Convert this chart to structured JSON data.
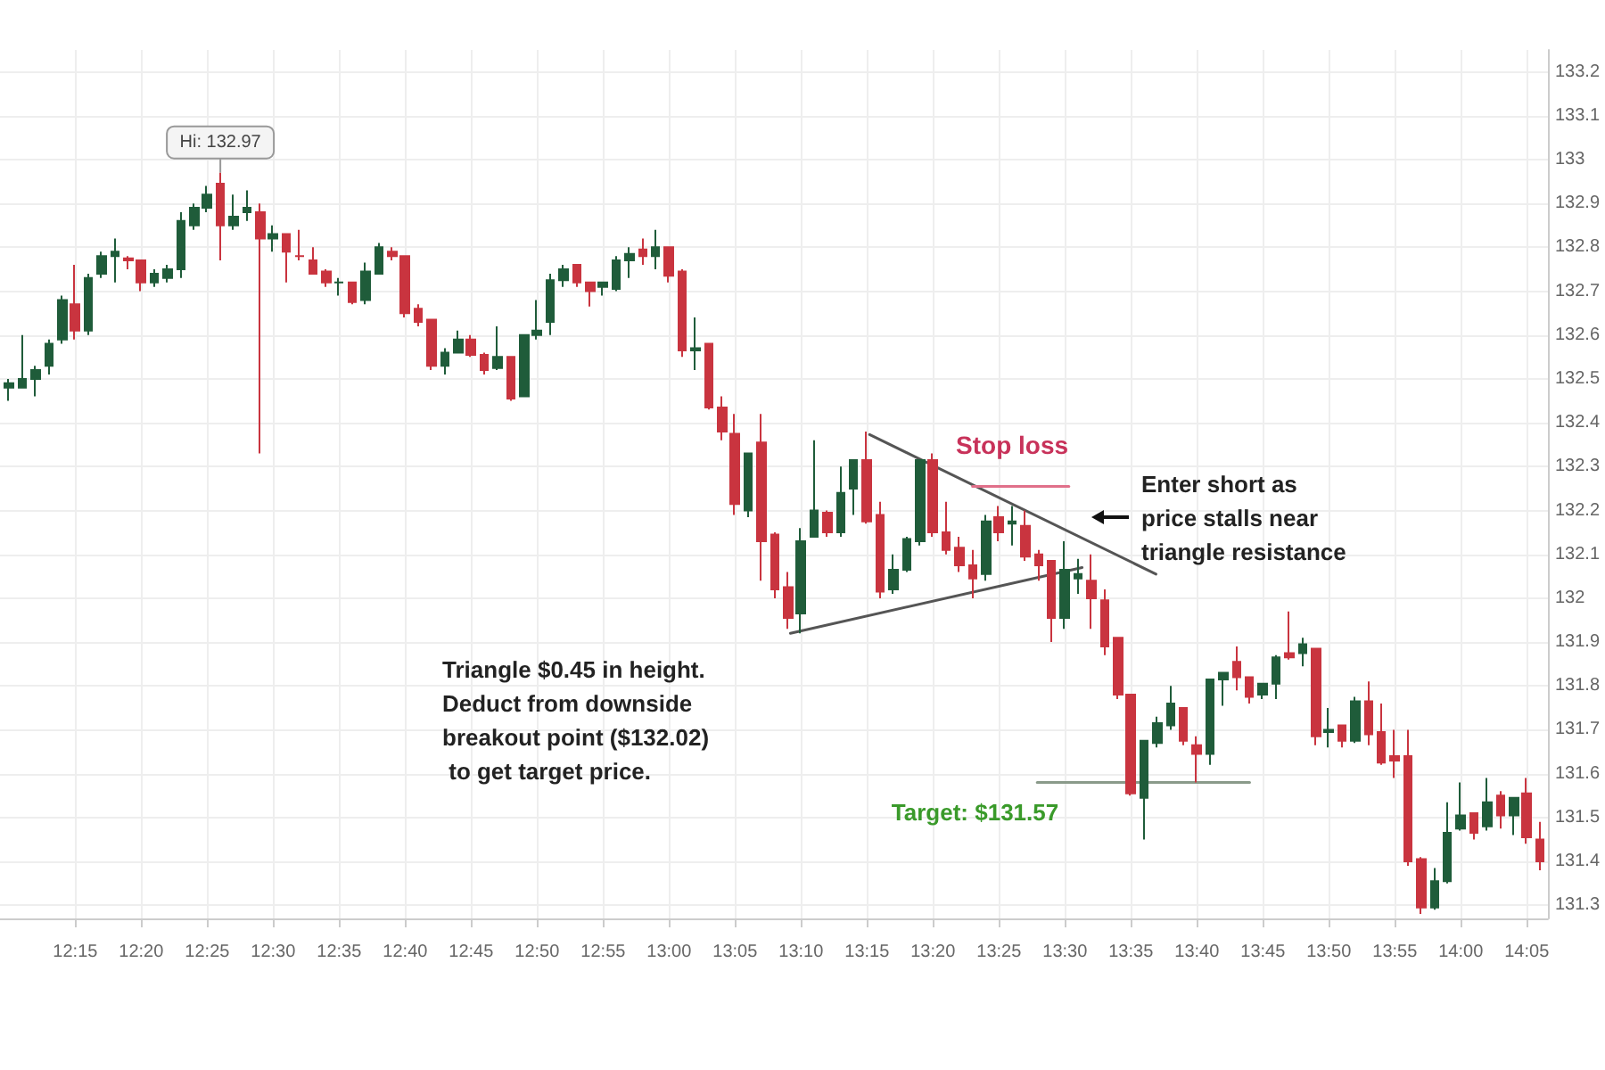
{
  "chart_data": {
    "type": "candlestick",
    "x": [
      12.1667,
      12.1833,
      12.2,
      12.2167,
      12.2333,
      12.25,
      12.2667,
      12.2833,
      12.3,
      12.3167,
      12.3333,
      12.35,
      12.3667,
      12.3833,
      12.4,
      12.4167,
      12.4333,
      12.45,
      12.4667,
      12.4833,
      12.5,
      12.5167,
      12.5333,
      12.55,
      12.5667,
      12.5833,
      12.6,
      12.6167,
      12.6333,
      12.65,
      12.6667,
      12.6833,
      12.7,
      12.7167,
      12.7333,
      12.75,
      12.7667,
      12.7833,
      12.8,
      12.8167,
      12.8333,
      12.85,
      12.8667,
      12.8833,
      12.9,
      12.9167,
      12.9333,
      12.95,
      12.9667,
      12.9833,
      13,
      13.0167,
      13.0333,
      13.05,
      13.0667,
      13.0833,
      13.1,
      13.1167,
      13.1333,
      13.15,
      13.1667,
      13.1833,
      13.2,
      13.2167,
      13.2333,
      13.25,
      13.2667,
      13.2833,
      13.3,
      13.3167,
      13.3333,
      13.35,
      13.3667,
      13.3833,
      13.4,
      13.4167,
      13.4333,
      13.45,
      13.4667,
      13.4833,
      13.5,
      13.5167,
      13.5333,
      13.55,
      13.5667,
      13.5833,
      13.6,
      13.6167,
      13.6333,
      13.65,
      13.6667,
      13.6833,
      13.7,
      13.7167,
      13.7333,
      13.75,
      13.7667,
      13.7833,
      13.8,
      13.8167,
      13.8333,
      13.85,
      13.8667,
      13.8833,
      13.9,
      13.9167,
      13.9333,
      13.95,
      13.9667,
      13.9833,
      14,
      14.0167,
      14.0333,
      14.05,
      14.0667,
      14.0833,
      14.1
    ],
    "ohlc": [
      [
        132.48,
        132.5,
        132.45,
        132.49
      ],
      [
        132.48,
        132.6,
        132.48,
        132.5
      ],
      [
        132.5,
        132.53,
        132.46,
        132.52
      ],
      [
        132.53,
        132.59,
        132.51,
        132.58
      ],
      [
        132.59,
        132.69,
        132.58,
        132.68
      ],
      [
        132.67,
        132.76,
        132.59,
        132.61
      ],
      [
        132.61,
        132.74,
        132.6,
        132.73
      ],
      [
        132.74,
        132.79,
        132.73,
        132.78
      ],
      [
        132.78,
        132.82,
        132.72,
        132.79
      ],
      [
        132.775,
        132.78,
        132.75,
        132.77
      ],
      [
        132.77,
        132.77,
        132.7,
        132.72
      ],
      [
        132.72,
        132.75,
        132.71,
        132.74
      ],
      [
        132.73,
        132.76,
        132.72,
        132.75
      ],
      [
        132.75,
        132.88,
        132.73,
        132.86
      ],
      [
        132.85,
        132.9,
        132.84,
        132.89
      ],
      [
        132.89,
        132.94,
        132.88,
        132.92
      ],
      [
        132.945,
        132.97,
        132.77,
        132.85
      ],
      [
        132.85,
        132.92,
        132.84,
        132.87
      ],
      [
        132.88,
        132.93,
        132.86,
        132.89
      ],
      [
        132.88,
        132.9,
        132.33,
        132.82
      ],
      [
        132.82,
        132.85,
        132.79,
        132.83
      ],
      [
        132.83,
        132.83,
        132.72,
        132.79
      ],
      [
        132.78,
        132.84,
        132.77,
        132.78
      ],
      [
        132.77,
        132.8,
        132.74,
        132.74
      ],
      [
        132.745,
        132.75,
        132.71,
        132.72
      ],
      [
        132.72,
        132.73,
        132.69,
        132.72
      ],
      [
        132.72,
        132.72,
        132.67,
        132.675
      ],
      [
        132.68,
        132.765,
        132.67,
        132.745
      ],
      [
        132.74,
        132.81,
        132.74,
        132.8
      ],
      [
        132.79,
        132.8,
        132.77,
        132.78
      ],
      [
        132.78,
        132.78,
        132.64,
        132.65
      ],
      [
        132.66,
        132.67,
        132.62,
        132.63
      ],
      [
        132.635,
        132.635,
        132.52,
        132.53
      ],
      [
        132.53,
        132.57,
        132.51,
        132.56
      ],
      [
        132.56,
        132.61,
        132.56,
        132.59
      ],
      [
        132.59,
        132.6,
        132.55,
        132.555
      ],
      [
        132.555,
        132.56,
        132.51,
        132.52
      ],
      [
        132.525,
        132.62,
        132.52,
        132.55
      ],
      [
        132.55,
        132.55,
        132.45,
        132.455
      ],
      [
        132.46,
        132.6,
        132.46,
        132.6
      ],
      [
        132.6,
        132.68,
        132.59,
        132.61
      ],
      [
        132.63,
        132.74,
        132.6,
        132.725
      ],
      [
        132.725,
        132.76,
        132.71,
        132.75
      ],
      [
        132.76,
        132.76,
        132.71,
        132.72
      ],
      [
        132.72,
        132.72,
        132.665,
        132.7
      ],
      [
        132.71,
        132.72,
        132.69,
        132.72
      ],
      [
        132.705,
        132.78,
        132.7,
        132.77
      ],
      [
        132.77,
        132.8,
        132.73,
        132.785
      ],
      [
        132.795,
        132.82,
        132.76,
        132.78
      ],
      [
        132.78,
        132.84,
        132.75,
        132.8
      ],
      [
        132.8,
        132.8,
        132.72,
        132.735
      ],
      [
        132.745,
        132.75,
        132.55,
        132.565
      ],
      [
        132.565,
        132.64,
        132.52,
        132.57
      ],
      [
        132.58,
        132.58,
        132.43,
        132.435
      ],
      [
        132.435,
        132.46,
        132.36,
        132.38
      ],
      [
        132.375,
        132.42,
        132.19,
        132.215
      ],
      [
        132.2,
        132.33,
        132.185,
        132.33
      ],
      [
        132.355,
        132.42,
        132.04,
        132.13
      ],
      [
        132.145,
        132.15,
        132.0,
        132.02
      ],
      [
        132.025,
        132.06,
        131.93,
        131.955
      ],
      [
        131.965,
        132.16,
        131.92,
        132.13
      ],
      [
        132.14,
        132.36,
        132.14,
        132.2
      ],
      [
        132.195,
        132.2,
        132.14,
        132.15
      ],
      [
        132.15,
        132.3,
        132.14,
        132.24
      ],
      [
        132.25,
        132.315,
        132.19,
        132.315
      ],
      [
        132.315,
        132.38,
        132.17,
        132.175
      ],
      [
        132.19,
        132.22,
        132.0,
        132.015
      ],
      [
        132.02,
        132.1,
        132.01,
        132.065
      ],
      [
        132.065,
        132.14,
        132.06,
        132.135
      ],
      [
        132.13,
        132.315,
        132.12,
        132.315
      ],
      [
        132.315,
        132.33,
        132.14,
        132.15
      ],
      [
        132.15,
        132.22,
        132.1,
        132.11
      ],
      [
        132.115,
        132.14,
        132.06,
        132.075
      ],
      [
        132.075,
        132.11,
        132.0,
        132.045
      ],
      [
        132.055,
        132.19,
        132.04,
        132.175
      ],
      [
        132.185,
        132.21,
        132.13,
        132.15
      ],
      [
        132.17,
        132.21,
        132.12,
        132.175
      ],
      [
        132.165,
        132.2,
        132.085,
        132.095
      ],
      [
        132.1,
        132.11,
        132.04,
        132.075
      ],
      [
        132.085,
        132.085,
        131.9,
        131.955
      ],
      [
        131.955,
        132.13,
        131.93,
        132.065
      ],
      [
        132.045,
        132.09,
        132.01,
        132.055
      ],
      [
        132.04,
        132.1,
        131.93,
        132.0
      ],
      [
        131.995,
        132.02,
        131.87,
        131.89
      ],
      [
        131.91,
        131.91,
        131.77,
        131.78
      ],
      [
        131.78,
        131.78,
        131.55,
        131.555
      ],
      [
        131.545,
        131.675,
        131.45,
        131.675
      ],
      [
        131.67,
        131.73,
        131.66,
        131.715
      ],
      [
        131.71,
        131.8,
        131.7,
        131.76
      ],
      [
        131.75,
        131.75,
        131.665,
        131.675
      ],
      [
        131.665,
        131.685,
        131.58,
        131.645
      ],
      [
        131.645,
        131.815,
        131.62,
        131.815
      ],
      [
        131.815,
        131.83,
        131.755,
        131.83
      ],
      [
        131.855,
        131.89,
        131.79,
        131.82
      ],
      [
        131.82,
        131.82,
        131.76,
        131.775
      ],
      [
        131.78,
        131.805,
        131.77,
        131.805
      ],
      [
        131.805,
        131.87,
        131.77,
        131.865
      ],
      [
        131.875,
        131.97,
        131.86,
        131.865
      ],
      [
        131.875,
        131.91,
        131.845,
        131.895
      ],
      [
        131.885,
        131.885,
        131.665,
        131.685
      ],
      [
        131.695,
        131.75,
        131.66,
        131.7
      ],
      [
        131.71,
        131.71,
        131.66,
        131.675
      ],
      [
        131.675,
        131.775,
        131.67,
        131.765
      ],
      [
        131.765,
        131.81,
        131.665,
        131.69
      ],
      [
        131.695,
        131.76,
        131.62,
        131.625
      ],
      [
        131.64,
        131.7,
        131.59,
        131.63
      ],
      [
        131.64,
        131.7,
        131.39,
        131.4
      ],
      [
        131.405,
        131.41,
        131.28,
        131.295
      ],
      [
        131.295,
        131.385,
        131.29,
        131.355
      ],
      [
        131.355,
        131.535,
        131.35,
        131.465
      ],
      [
        131.475,
        131.58,
        131.47,
        131.505
      ],
      [
        131.51,
        131.51,
        131.45,
        131.465
      ],
      [
        131.48,
        131.59,
        131.47,
        131.535
      ],
      [
        131.55,
        131.56,
        131.475,
        131.505
      ],
      [
        131.505,
        131.545,
        131.46,
        131.545
      ],
      [
        131.555,
        131.59,
        131.44,
        131.455
      ],
      [
        131.45,
        131.49,
        131.38,
        131.4
      ]
    ],
    "series": [
      {
        "type": "line",
        "x": [
          13.2533,
          13.615
        ],
        "values": [
          132.373,
          132.055
        ],
        "color": "#555555"
      },
      {
        "type": "line",
        "x": [
          13.1533,
          13.5217
        ],
        "values": [
          131.92,
          132.07
        ],
        "color": "#555555"
      },
      {
        "type": "line",
        "x": [
          13.3833,
          13.505
        ],
        "values": [
          132.255,
          132.255
        ],
        "color": "#e0708a"
      },
      {
        "type": "line",
        "x": [
          13.465,
          13.7333
        ],
        "values": [
          131.58,
          131.58
        ],
        "color": "#8a9a8a"
      }
    ],
    "xlim": [
      12.155,
      14.11
    ],
    "xticks": [
      {
        "value": 12.25,
        "label": "12:15"
      },
      {
        "value": 12.3333,
        "label": "12:20"
      },
      {
        "value": 12.4167,
        "label": "12:25"
      },
      {
        "value": 12.5,
        "label": "12:30"
      },
      {
        "value": 12.5833,
        "label": "12:35"
      },
      {
        "value": 12.6667,
        "label": "12:40"
      },
      {
        "value": 12.75,
        "label": "12:45"
      },
      {
        "value": 12.8333,
        "label": "12:50"
      },
      {
        "value": 12.9167,
        "label": "12:55"
      },
      {
        "value": 13,
        "label": "13:00"
      },
      {
        "value": 13.0833,
        "label": "13:05"
      },
      {
        "value": 13.1667,
        "label": "13:10"
      },
      {
        "value": 13.25,
        "label": "13:15"
      },
      {
        "value": 13.3333,
        "label": "13:20"
      },
      {
        "value": 13.4167,
        "label": "13:25"
      },
      {
        "value": 13.5,
        "label": "13:30"
      },
      {
        "value": 13.5833,
        "label": "13:35"
      },
      {
        "value": 13.6667,
        "label": "13:40"
      },
      {
        "value": 13.75,
        "label": "13:45"
      },
      {
        "value": 13.8333,
        "label": "13:50"
      },
      {
        "value": 13.9167,
        "label": "13:55"
      },
      {
        "value": 14,
        "label": "14:00"
      },
      {
        "value": 14.0833,
        "label": "14:05"
      }
    ],
    "ylim": [
      131.27,
      133.25
    ],
    "yticks": [
      131.3,
      131.4,
      131.5,
      131.6,
      131.7,
      131.8,
      131.9,
      132,
      132.1,
      132.2,
      132.3,
      132.4,
      132.5,
      132.6,
      132.7,
      132.8,
      132.9,
      133,
      133.1,
      133.2
    ],
    "grid": true,
    "annotations": [
      {
        "text": "Hi: 132.97",
        "x": 12.4333,
        "y": 132.97
      },
      {
        "text": "Stop loss",
        "x": 13.4333,
        "y": 132.255
      },
      "Enter short as\nprice stalls near\ntriangle resistance",
      "Triangle $0.45 in height.\nDeduct from downside\nbreakout point ($132.02)\n to get target price.",
      {
        "text": "Target: $131.57",
        "x": 13.465,
        "y": 131.58
      }
    ]
  }
}
